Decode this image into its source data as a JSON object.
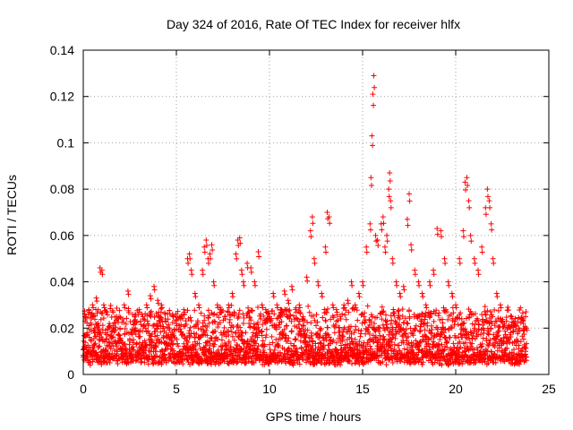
{
  "chart_data": {
    "type": "scatter",
    "title": "Day 324 of 2016, Rate Of TEC Index for receiver hlfx",
    "xlabel": "GPS time / hours",
    "ylabel": "ROTI / TECUs",
    "xlim": [
      0,
      25
    ],
    "ylim": [
      0,
      0.14
    ],
    "xticks": [
      0,
      5,
      10,
      15,
      20,
      25
    ],
    "xtick_labels": [
      "0",
      "5",
      "10",
      "15",
      "20",
      "25"
    ],
    "yticks": [
      0,
      0.02,
      0.04,
      0.06,
      0.08,
      0.1,
      0.12,
      0.14
    ],
    "ytick_labels": [
      "0",
      "0.02",
      "0.04",
      "0.06",
      "0.08",
      "0.1",
      "0.12",
      "0.14"
    ],
    "grid": true,
    "marker": "+",
    "color": "#ff0000",
    "series": [
      {
        "name": "ROTI",
        "points": [
          [
            0.05,
            0.012
          ],
          [
            0.1,
            0.025
          ],
          [
            0.2,
            0.018
          ],
          [
            0.3,
            0.028
          ],
          [
            0.4,
            0.015
          ],
          [
            0.5,
            0.03
          ],
          [
            0.6,
            0.02
          ],
          [
            0.7,
            0.033
          ],
          [
            0.8,
            0.022
          ],
          [
            0.9,
            0.046
          ],
          [
            1.0,
            0.045
          ],
          [
            1.1,
            0.03
          ],
          [
            1.2,
            0.018
          ],
          [
            1.4,
            0.022
          ],
          [
            1.6,
            0.02
          ],
          [
            1.8,
            0.025
          ],
          [
            2.0,
            0.015
          ],
          [
            2.2,
            0.03
          ],
          [
            2.4,
            0.036
          ],
          [
            2.6,
            0.018
          ],
          [
            2.8,
            0.02
          ],
          [
            3.0,
            0.028
          ],
          [
            3.2,
            0.025
          ],
          [
            3.4,
            0.03
          ],
          [
            3.6,
            0.034
          ],
          [
            3.8,
            0.038
          ],
          [
            4.0,
            0.032
          ],
          [
            4.2,
            0.03
          ],
          [
            4.4,
            0.024
          ],
          [
            4.6,
            0.02
          ],
          [
            4.8,
            0.026
          ],
          [
            5.0,
            0.022
          ],
          [
            5.2,
            0.025
          ],
          [
            5.4,
            0.028
          ],
          [
            5.6,
            0.05
          ],
          [
            5.7,
            0.052
          ],
          [
            5.8,
            0.045
          ],
          [
            6.0,
            0.035
          ],
          [
            6.2,
            0.03
          ],
          [
            6.4,
            0.045
          ],
          [
            6.5,
            0.055
          ],
          [
            6.6,
            0.058
          ],
          [
            6.7,
            0.05
          ],
          [
            6.8,
            0.052
          ],
          [
            6.9,
            0.056
          ],
          [
            7.0,
            0.04
          ],
          [
            7.2,
            0.03
          ],
          [
            7.4,
            0.028
          ],
          [
            7.6,
            0.025
          ],
          [
            7.8,
            0.03
          ],
          [
            8.0,
            0.035
          ],
          [
            8.2,
            0.052
          ],
          [
            8.3,
            0.058
          ],
          [
            8.4,
            0.059
          ],
          [
            8.5,
            0.045
          ],
          [
            8.6,
            0.04
          ],
          [
            8.8,
            0.048
          ],
          [
            9.0,
            0.046
          ],
          [
            9.2,
            0.04
          ],
          [
            9.4,
            0.053
          ],
          [
            9.6,
            0.03
          ],
          [
            9.8,
            0.028
          ],
          [
            10.0,
            0.025
          ],
          [
            10.2,
            0.035
          ],
          [
            10.4,
            0.03
          ],
          [
            10.6,
            0.028
          ],
          [
            10.8,
            0.036
          ],
          [
            11.0,
            0.032
          ],
          [
            11.2,
            0.038
          ],
          [
            11.4,
            0.028
          ],
          [
            11.6,
            0.03
          ],
          [
            11.8,
            0.025
          ],
          [
            12.0,
            0.042
          ],
          [
            12.2,
            0.062
          ],
          [
            12.3,
            0.068
          ],
          [
            12.4,
            0.05
          ],
          [
            12.6,
            0.04
          ],
          [
            12.8,
            0.035
          ],
          [
            13.0,
            0.055
          ],
          [
            13.1,
            0.07
          ],
          [
            13.2,
            0.068
          ],
          [
            13.4,
            0.03
          ],
          [
            13.6,
            0.028
          ],
          [
            13.8,
            0.025
          ],
          [
            14.0,
            0.03
          ],
          [
            14.2,
            0.032
          ],
          [
            14.4,
            0.04
          ],
          [
            14.6,
            0.03
          ],
          [
            14.8,
            0.035
          ],
          [
            15.0,
            0.04
          ],
          [
            15.2,
            0.055
          ],
          [
            15.4,
            0.065
          ],
          [
            15.45,
            0.085
          ],
          [
            15.5,
            0.103
          ],
          [
            15.55,
            0.121
          ],
          [
            15.6,
            0.129
          ],
          [
            15.7,
            0.06
          ],
          [
            15.8,
            0.058
          ],
          [
            16.0,
            0.065
          ],
          [
            16.1,
            0.068
          ],
          [
            16.2,
            0.055
          ],
          [
            16.3,
            0.06
          ],
          [
            16.4,
            0.08
          ],
          [
            16.45,
            0.087
          ],
          [
            16.5,
            0.075
          ],
          [
            16.6,
            0.05
          ],
          [
            16.8,
            0.04
          ],
          [
            17.0,
            0.035
          ],
          [
            17.2,
            0.038
          ],
          [
            17.4,
            0.067
          ],
          [
            17.5,
            0.078
          ],
          [
            17.6,
            0.056
          ],
          [
            17.8,
            0.045
          ],
          [
            18.0,
            0.04
          ],
          [
            18.2,
            0.035
          ],
          [
            18.4,
            0.03
          ],
          [
            18.6,
            0.04
          ],
          [
            18.8,
            0.045
          ],
          [
            19.0,
            0.063
          ],
          [
            19.2,
            0.062
          ],
          [
            19.4,
            0.05
          ],
          [
            19.6,
            0.04
          ],
          [
            19.8,
            0.035
          ],
          [
            20.0,
            0.03
          ],
          [
            20.2,
            0.05
          ],
          [
            20.4,
            0.062
          ],
          [
            20.5,
            0.083
          ],
          [
            20.6,
            0.085
          ],
          [
            20.7,
            0.075
          ],
          [
            20.8,
            0.06
          ],
          [
            21.0,
            0.05
          ],
          [
            21.2,
            0.045
          ],
          [
            21.4,
            0.055
          ],
          [
            21.6,
            0.072
          ],
          [
            21.7,
            0.08
          ],
          [
            21.8,
            0.075
          ],
          [
            21.9,
            0.065
          ],
          [
            22.0,
            0.05
          ],
          [
            22.2,
            0.035
          ],
          [
            22.4,
            0.03
          ],
          [
            22.6,
            0.022
          ],
          [
            22.8,
            0.029
          ],
          [
            23.0,
            0.025
          ],
          [
            23.2,
            0.022
          ],
          [
            23.4,
            0.02
          ],
          [
            23.6,
            0.023
          ],
          [
            23.8,
            0.02
          ]
        ]
      }
    ]
  }
}
